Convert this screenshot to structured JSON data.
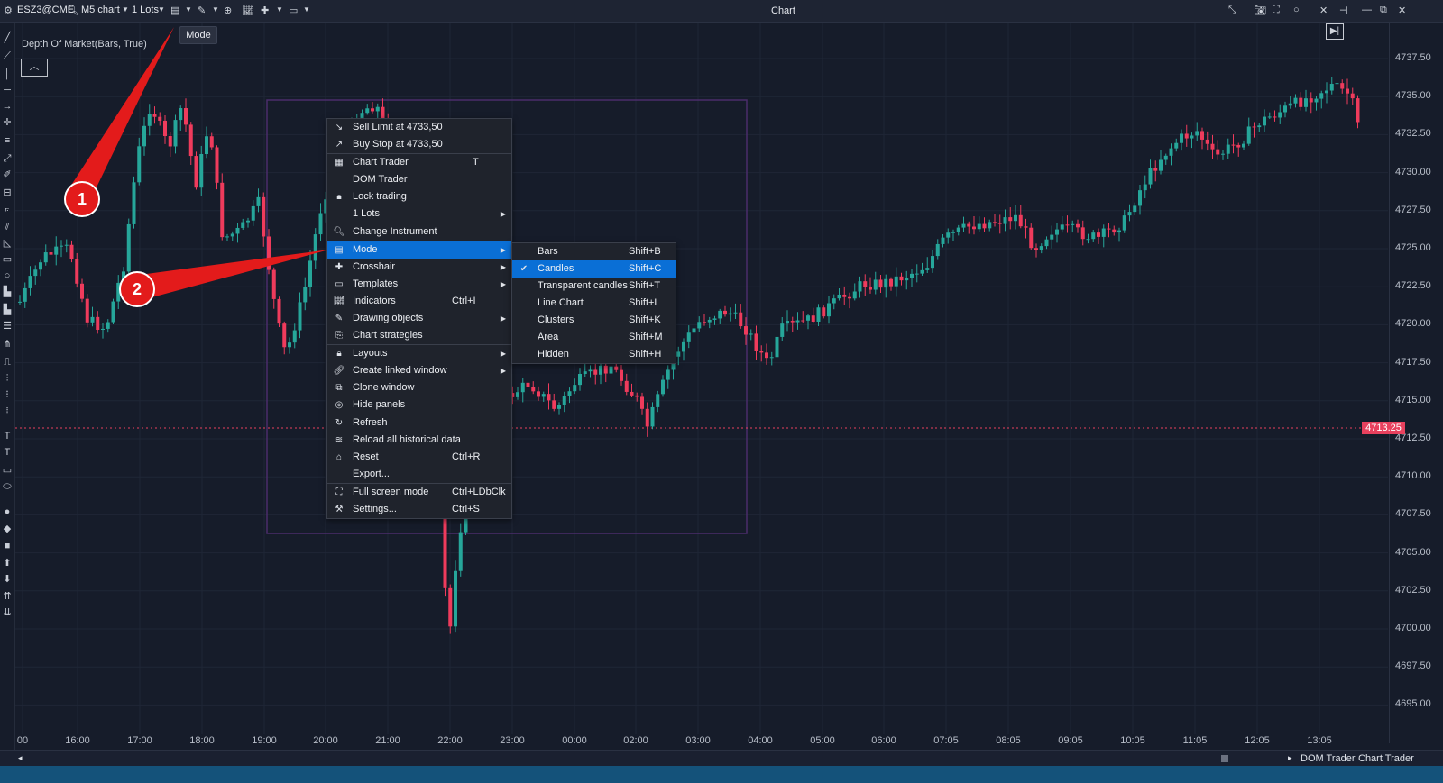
{
  "toolbar": {
    "symbol": "ESZ3@CME",
    "chart_type": "M5 chart",
    "lots": "1 Lots",
    "title": "Chart",
    "mode_tooltip": "Mode"
  },
  "chart": {
    "indicator": "Depth Of Market(Bars, True)",
    "current_price": "4713.25",
    "price_levels": [
      "4737.50",
      "4735.00",
      "4732.50",
      "4730.00",
      "4727.50",
      "4725.00",
      "4722.50",
      "4720.00",
      "4717.50",
      "4715.00",
      "4712.50",
      "4710.00",
      "4707.50",
      "4705.00",
      "4702.50",
      "4700.00",
      "4697.50",
      "4695.00"
    ],
    "time_labels": [
      "00",
      "16:00",
      "17:00",
      "18:00",
      "19:00",
      "20:00",
      "21:00",
      "22:00",
      "23:00",
      "00:00",
      "02:00",
      "03:00",
      "04:00",
      "05:00",
      "06:00",
      "07:05",
      "08:05",
      "09:05",
      "10:05",
      "11:05",
      "12:05",
      "13:05"
    ],
    "colors": {
      "up": "#26a69a",
      "down": "#ef3b5c",
      "bg": "#161c2a",
      "highlight": "#0a6fd6",
      "callout": "#e31b1b"
    }
  },
  "context_menu": {
    "items": [
      {
        "icon": "sell-limit-icon",
        "label": "Sell Limit at 4733,50",
        "shortcut": "",
        "submenu": false
      },
      {
        "icon": "buy-stop-icon",
        "label": "Buy Stop at 4733,50",
        "shortcut": "",
        "submenu": false
      },
      {
        "icon": "chart-trader-icon",
        "label": "Chart Trader",
        "shortcut": "T",
        "submenu": false
      },
      {
        "icon": "",
        "label": "DOM Trader",
        "shortcut": "",
        "submenu": false
      },
      {
        "icon": "lock-icon",
        "label": "Lock trading",
        "shortcut": "",
        "submenu": false
      },
      {
        "icon": "",
        "label": "1 Lots",
        "shortcut": "",
        "submenu": true
      },
      {
        "icon": "search-icon",
        "label": "Change Instrument",
        "shortcut": "",
        "submenu": false
      },
      {
        "icon": "mode-icon",
        "label": "Mode",
        "shortcut": "",
        "submenu": true
      },
      {
        "icon": "crosshair-icon",
        "label": "Crosshair",
        "shortcut": "",
        "submenu": true
      },
      {
        "icon": "templates-icon",
        "label": "Templates",
        "shortcut": "",
        "submenu": true
      },
      {
        "icon": "indicators-icon",
        "label": "Indicators",
        "shortcut": "Ctrl+I",
        "submenu": false
      },
      {
        "icon": "pencil-icon",
        "label": "Drawing objects",
        "shortcut": "",
        "submenu": true
      },
      {
        "icon": "strategies-icon",
        "label": "Chart strategies",
        "shortcut": "",
        "submenu": false
      },
      {
        "icon": "lock-icon",
        "label": "Layouts",
        "shortcut": "",
        "submenu": true
      },
      {
        "icon": "link-icon",
        "label": "Create linked window",
        "shortcut": "",
        "submenu": true
      },
      {
        "icon": "clone-icon",
        "label": "Clone window",
        "shortcut": "",
        "submenu": false
      },
      {
        "icon": "eye-hidden-icon",
        "label": "Hide panels",
        "shortcut": "",
        "submenu": false
      },
      {
        "icon": "refresh-icon",
        "label": "Refresh",
        "shortcut": "",
        "submenu": false
      },
      {
        "icon": "database-icon",
        "label": "Reload all historical data",
        "shortcut": "",
        "submenu": false
      },
      {
        "icon": "reset-icon",
        "label": "Reset",
        "shortcut": "Ctrl+R",
        "submenu": false
      },
      {
        "icon": "",
        "label": "Export...",
        "shortcut": "",
        "submenu": false
      },
      {
        "icon": "fullscreen-icon",
        "label": "Full screen mode",
        "shortcut": "Ctrl+LDbClk",
        "submenu": false
      },
      {
        "icon": "settings-icon",
        "label": "Settings...",
        "shortcut": "Ctrl+S",
        "submenu": false
      }
    ]
  },
  "mode_submenu": {
    "items": [
      {
        "label": "Bars",
        "shortcut": "Shift+B",
        "checked": false
      },
      {
        "label": "Candles",
        "shortcut": "Shift+C",
        "checked": true
      },
      {
        "label": "Transparent candles",
        "shortcut": "Shift+T",
        "checked": false
      },
      {
        "label": "Line Chart",
        "shortcut": "Shift+L",
        "checked": false
      },
      {
        "label": "Clusters",
        "shortcut": "Shift+K",
        "checked": false
      },
      {
        "label": "Area",
        "shortcut": "Shift+M",
        "checked": false
      },
      {
        "label": "Hidden",
        "shortcut": "Shift+H",
        "checked": false
      }
    ]
  },
  "callouts": [
    "1",
    "2"
  ],
  "bottom": {
    "dom_trader": "DOM Trader",
    "chart_trader": "Chart Trader"
  }
}
